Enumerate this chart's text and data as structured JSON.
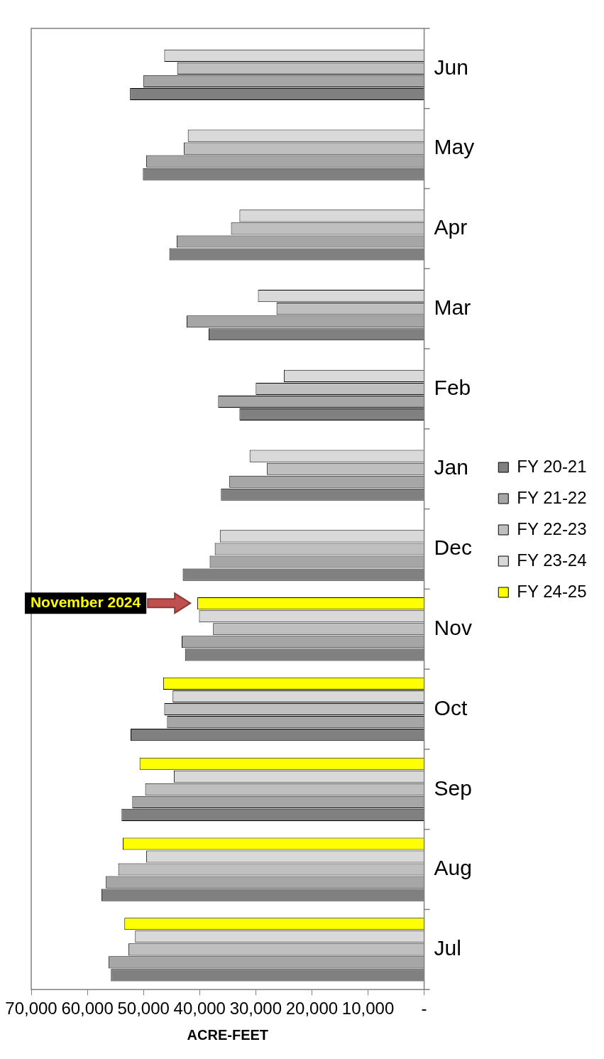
{
  "chart_data": {
    "type": "bar",
    "orientation": "horizontal",
    "xlabel": "ACRE-FEET",
    "categories": [
      "Jun",
      "May",
      "Apr",
      "Mar",
      "Feb",
      "Jan",
      "Dec",
      "Nov",
      "Oct",
      "Sep",
      "Aug",
      "Jul"
    ],
    "series": [
      {
        "name": "FY 20-21",
        "color": "#808080",
        "values": [
          52400,
          50100,
          45400,
          38400,
          32900,
          36200,
          43000,
          42600,
          52300,
          53900,
          57500,
          55800
        ]
      },
      {
        "name": "FY 21-22",
        "color": "#a6a6a6",
        "values": [
          50000,
          49500,
          44100,
          42300,
          36700,
          34700,
          38200,
          43200,
          45800,
          52000,
          56700,
          56200
        ]
      },
      {
        "name": "FY 22-23",
        "color": "#bfbfbf",
        "values": [
          44000,
          42800,
          34400,
          26300,
          30000,
          28000,
          37300,
          37600,
          46300,
          49700,
          54500,
          52700
        ]
      },
      {
        "name": "FY 23-24",
        "color": "#d9d9d9",
        "values": [
          46300,
          42100,
          32900,
          29600,
          25000,
          31100,
          36400,
          40100,
          44800,
          44600,
          49500,
          51500
        ]
      },
      {
        "name": "FY 24-25",
        "color": "#ffff00",
        "values": [
          null,
          null,
          null,
          null,
          null,
          null,
          null,
          40400,
          46500,
          50700,
          53700,
          53400
        ]
      }
    ],
    "xlim": [
      70000,
      0
    ],
    "xticks": [
      {
        "value": 0,
        "label": "-"
      },
      {
        "value": 10000,
        "label": "10,000"
      },
      {
        "value": 20000,
        "label": "20,000"
      },
      {
        "value": 30000,
        "label": "30,000"
      },
      {
        "value": 40000,
        "label": "40,000"
      },
      {
        "value": 50000,
        "label": "50,000"
      },
      {
        "value": 60000,
        "label": "60,000"
      },
      {
        "value": 70000,
        "label": "70,000"
      }
    ],
    "grid": false,
    "legend": "right",
    "annotations": [
      "November 2024"
    ]
  }
}
